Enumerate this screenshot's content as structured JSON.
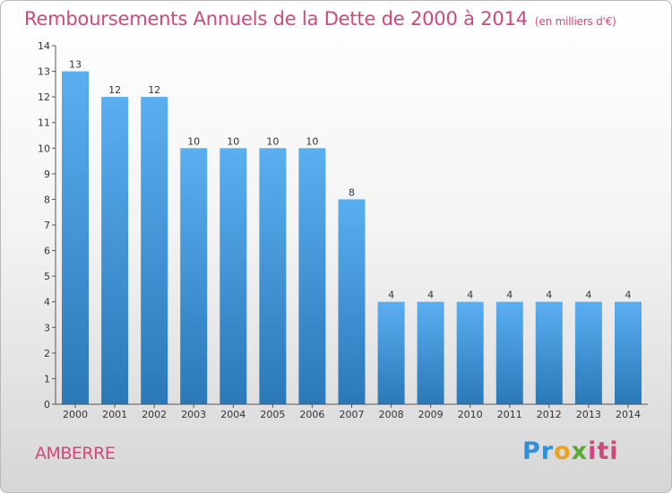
{
  "title": "Remboursements Annuels de la Dette de 2000 à 2014",
  "unit": "(en milliers d'€)",
  "commune": "AMBERRE",
  "logo_text": [
    "Pr",
    "o",
    "x",
    "iti"
  ],
  "colors": {
    "title": "#d2477d",
    "bar_top": "#5aaff0",
    "bar_bottom": "#2a78b8"
  },
  "chart_data": {
    "type": "bar",
    "title": "Remboursements Annuels de la Dette de 2000 à 2014",
    "categories": [
      "2000",
      "2001",
      "2002",
      "2003",
      "2004",
      "2005",
      "2006",
      "2007",
      "2008",
      "2009",
      "2010",
      "2011",
      "2012",
      "2013",
      "2014"
    ],
    "values": [
      13,
      12,
      12,
      10,
      10,
      10,
      10,
      8,
      4,
      4,
      4,
      4,
      4,
      4,
      4
    ],
    "ylim": [
      0,
      14
    ],
    "yticks": [
      0,
      1,
      2,
      3,
      4,
      5,
      6,
      7,
      8,
      9,
      10,
      11,
      12,
      13,
      14
    ],
    "grid": false,
    "xlabel": "",
    "ylabel": ""
  }
}
